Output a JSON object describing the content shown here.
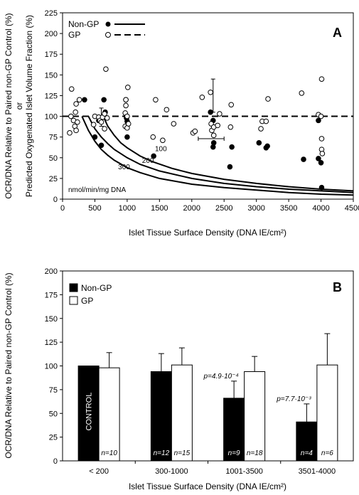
{
  "chart_data": [
    {
      "panel": "A",
      "type": "scatter",
      "ylabel_line1": "OCR/DNA Relative to Paired non-GP Control (%)",
      "ylabel_line2": "or",
      "ylabel_line3": "Predicted Oxygenated Islet Volume Fraction (%)",
      "xlabel": "Islet Tissue Surface Density (DNA IE/cm²)",
      "xlim": [
        0,
        4500
      ],
      "ylim": [
        0,
        225
      ],
      "xticks": [
        0,
        500,
        1000,
        1500,
        2000,
        2500,
        3000,
        3500,
        4000,
        4500
      ],
      "yticks": [
        0,
        25,
        50,
        75,
        100,
        125,
        150,
        175,
        200,
        225
      ],
      "legend": [
        {
          "label": "Non-GP",
          "marker": "filled-circle",
          "line": "solid"
        },
        {
          "label": "GP",
          "marker": "open-circle",
          "line": "dashed"
        }
      ],
      "series": [
        {
          "name": "Non-GP",
          "points": [
            [
              340,
              120
            ],
            [
              500,
              75
            ],
            [
              560,
              95
            ],
            [
              600,
              65
            ],
            [
              600,
              98
            ],
            [
              640,
              120
            ],
            [
              660,
              105
            ],
            [
              980,
              120
            ],
            [
              990,
              98
            ],
            [
              1000,
              75
            ],
            [
              1000,
              94
            ],
            [
              1410,
              52
            ],
            [
              2290,
              105
            ],
            [
              2330,
              95
            ],
            [
              2330,
              63
            ],
            [
              2340,
              68
            ],
            [
              2590,
              39
            ],
            [
              2620,
              63
            ],
            [
              3040,
              68
            ],
            [
              3150,
              62
            ],
            [
              3170,
              64
            ],
            [
              3730,
              48
            ],
            [
              3960,
              49
            ],
            [
              3960,
              95
            ],
            [
              4000,
              44
            ],
            [
              4010,
              14
            ]
          ]
        },
        {
          "name": "GP",
          "points": [
            [
              110,
              80
            ],
            [
              130,
              100
            ],
            [
              140,
              133
            ],
            [
              170,
              95
            ],
            [
              190,
              88
            ],
            [
              200,
              105
            ],
            [
              210,
              83
            ],
            [
              210,
              115
            ],
            [
              230,
              93
            ],
            [
              260,
              120
            ],
            [
              480,
              90
            ],
            [
              500,
              100
            ],
            [
              560,
              99
            ],
            [
              580,
              95
            ],
            [
              600,
              93
            ],
            [
              620,
              99
            ],
            [
              650,
              85
            ],
            [
              650,
              103
            ],
            [
              670,
              157
            ],
            [
              690,
              98
            ],
            [
              970,
              88
            ],
            [
              970,
              104
            ],
            [
              980,
              113
            ],
            [
              980,
              120
            ],
            [
              1000,
              100
            ],
            [
              1000,
              86
            ],
            [
              1010,
              135
            ],
            [
              1020,
              91
            ],
            [
              1400,
              75
            ],
            [
              1440,
              120
            ],
            [
              1550,
              71
            ],
            [
              1610,
              108
            ],
            [
              1720,
              91
            ],
            [
              2020,
              80
            ],
            [
              2050,
              82
            ],
            [
              2160,
              123
            ],
            [
              2290,
              129
            ],
            [
              2300,
              91
            ],
            [
              2310,
              83
            ],
            [
              2340,
              87
            ],
            [
              2340,
              77
            ],
            [
              2400,
              89
            ],
            [
              2430,
              103
            ],
            [
              2600,
              87
            ],
            [
              2610,
              114
            ],
            [
              3070,
              85
            ],
            [
              3090,
              94
            ],
            [
              3150,
              94
            ],
            [
              3180,
              121
            ],
            [
              3700,
              128
            ],
            [
              3960,
              102
            ],
            [
              4000,
              100
            ],
            [
              4010,
              145
            ],
            [
              4010,
              73
            ],
            [
              4010,
              60
            ],
            [
              4020,
              55
            ]
          ]
        }
      ],
      "curves": [
        {
          "label": "100",
          "points": [
            [
              630,
              100
            ],
            [
              700,
              88
            ],
            [
              800,
              77
            ],
            [
              900,
              68
            ],
            [
              1000,
              62
            ],
            [
              1200,
              52
            ],
            [
              1400,
              45
            ],
            [
              1700,
              37
            ],
            [
              2000,
              31
            ],
            [
              2500,
              24
            ],
            [
              3000,
              19
            ],
            [
              3500,
              15
            ],
            [
              4000,
              12
            ],
            [
              4500,
              10
            ]
          ]
        },
        {
          "label": "200",
          "points": [
            [
              400,
              100
            ],
            [
              500,
              85
            ],
            [
              600,
              75
            ],
            [
              700,
              67
            ],
            [
              800,
              60
            ],
            [
              1000,
              50
            ],
            [
              1200,
              42
            ],
            [
              1500,
              34
            ],
            [
              2000,
              25
            ],
            [
              2500,
              19
            ],
            [
              3000,
              15
            ],
            [
              3500,
              12
            ],
            [
              4000,
              10
            ],
            [
              4500,
              8
            ]
          ]
        },
        {
          "label": "300",
          "points": [
            [
              300,
              100
            ],
            [
              400,
              83
            ],
            [
              500,
              70
            ],
            [
              600,
              60
            ],
            [
              700,
              53
            ],
            [
              800,
              47
            ],
            [
              1000,
              38
            ],
            [
              1200,
              32
            ],
            [
              1500,
              25
            ],
            [
              2000,
              18
            ],
            [
              2500,
              14
            ],
            [
              3000,
              11
            ],
            [
              3500,
              8
            ],
            [
              4000,
              6
            ],
            [
              4500,
              5
            ]
          ]
        }
      ],
      "gp_reference_line": 100,
      "error_points": [
        {
          "x": 600,
          "y": 98,
          "ylow": 88,
          "yhigh": 110
        },
        {
          "x": 2330,
          "y": 125,
          "ylow": 105,
          "yhigh": 145
        },
        {
          "x": 2290,
          "y": 73,
          "xlow": 2100,
          "xhigh": 2500
        }
      ],
      "annotation": "nmol/min/mg DNA"
    },
    {
      "panel": "B",
      "type": "bar",
      "ylabel": "OCR/DNA Relative to Paired non-GP Control (%)",
      "xlabel": "Islet Tissue Surface Density (DNA IE/cm²)",
      "ylim": [
        0,
        200
      ],
      "yticks": [
        0,
        25,
        50,
        75,
        100,
        125,
        150,
        175,
        200
      ],
      "categories": [
        "< 200",
        "300-1000",
        "1001-3500",
        "3501-4000"
      ],
      "legend": [
        {
          "label": "Non-GP",
          "fill": "#000000"
        },
        {
          "label": "GP",
          "fill": "#ffffff"
        }
      ],
      "series": [
        {
          "name": "Non-GP",
          "values": [
            100,
            94,
            66,
            41
          ],
          "errors": [
            0,
            19,
            18,
            19
          ],
          "n_labels": [
            "",
            "n=12",
            "n=9",
            "n=4"
          ]
        },
        {
          "name": "GP",
          "values": [
            98,
            101,
            94,
            101
          ],
          "errors": [
            16,
            18,
            16,
            33
          ],
          "n_labels": [
            "n=10",
            "n=15",
            "n=18",
            "n=6"
          ]
        }
      ],
      "bar_text": "CONTROL",
      "pvalues": [
        {
          "category": "1001-3500",
          "text": "p=4.9·10⁻⁴"
        },
        {
          "category": "3501-4000",
          "text": "p=7.7·10⁻³"
        }
      ]
    }
  ]
}
